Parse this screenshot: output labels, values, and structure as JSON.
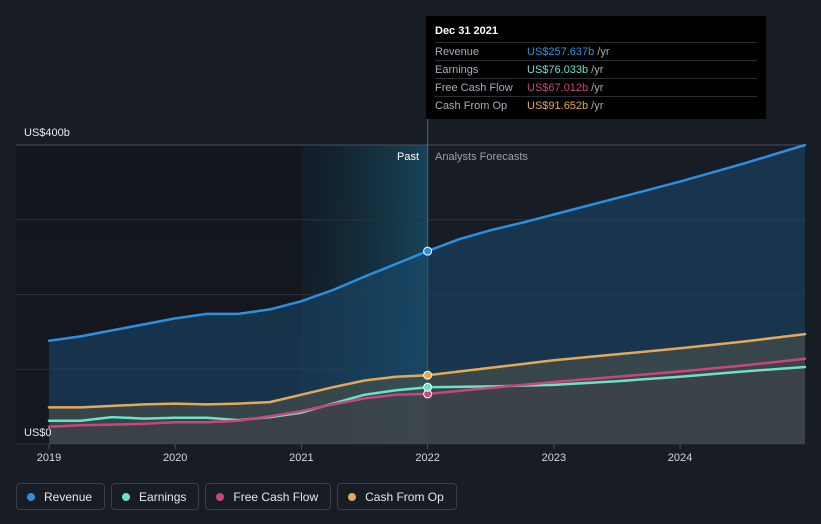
{
  "chart_data": {
    "type": "area",
    "title": "",
    "y_axis": {
      "top_label": "US$400b",
      "bottom_label": "US$0",
      "ylim": [
        0,
        400
      ]
    },
    "x_axis": {
      "ticks": [
        "2019",
        "2020",
        "2021",
        "2022",
        "2023",
        "2024"
      ],
      "xlim": [
        2019,
        2024.99
      ]
    },
    "past_label": "Past",
    "forecast_label": "Analysts Forecasts",
    "split_x": 2022.0,
    "highlight_start_x": 2021.0,
    "series": [
      {
        "name": "Revenue",
        "color": "#2d8fe0",
        "points": [
          [
            2019,
            138
          ],
          [
            2019.25,
            144
          ],
          [
            2019.5,
            152
          ],
          [
            2019.75,
            160
          ],
          [
            2020,
            168
          ],
          [
            2020.25,
            174
          ],
          [
            2020.5,
            174
          ],
          [
            2020.75,
            180
          ],
          [
            2021,
            191
          ],
          [
            2021.25,
            206
          ],
          [
            2021.5,
            224
          ],
          [
            2021.75,
            241
          ],
          [
            2022,
            258
          ],
          [
            2022.25,
            274
          ],
          [
            2022.5,
            286
          ],
          [
            2022.75,
            296
          ],
          [
            2023,
            307
          ],
          [
            2023.5,
            329
          ],
          [
            2024,
            351
          ],
          [
            2024.5,
            375
          ],
          [
            2024.99,
            400
          ]
        ]
      },
      {
        "name": "Cash From Op",
        "color": "#e4a85b",
        "points": [
          [
            2019,
            49
          ],
          [
            2019.25,
            49
          ],
          [
            2019.5,
            51
          ],
          [
            2019.75,
            53
          ],
          [
            2020,
            54
          ],
          [
            2020.25,
            53
          ],
          [
            2020.5,
            54
          ],
          [
            2020.75,
            56
          ],
          [
            2021,
            66
          ],
          [
            2021.25,
            76
          ],
          [
            2021.5,
            85
          ],
          [
            2021.75,
            90
          ],
          [
            2022,
            92
          ],
          [
            2022.5,
            102
          ],
          [
            2023,
            112
          ],
          [
            2023.5,
            120
          ],
          [
            2024,
            128
          ],
          [
            2024.5,
            137
          ],
          [
            2024.99,
            147
          ]
        ]
      },
      {
        "name": "Free Cash Flow",
        "color": "#c9467c",
        "points": [
          [
            2019,
            23
          ],
          [
            2019.25,
            25
          ],
          [
            2019.5,
            26
          ],
          [
            2019.75,
            27
          ],
          [
            2020,
            29
          ],
          [
            2020.25,
            29
          ],
          [
            2020.5,
            31
          ],
          [
            2020.75,
            37
          ],
          [
            2021,
            44
          ],
          [
            2021.25,
            53
          ],
          [
            2021.5,
            61
          ],
          [
            2021.75,
            66
          ],
          [
            2022,
            67
          ],
          [
            2022.5,
            75
          ],
          [
            2023,
            83
          ],
          [
            2023.5,
            90
          ],
          [
            2024,
            97
          ],
          [
            2024.5,
            105
          ],
          [
            2024.99,
            114
          ]
        ]
      },
      {
        "name": "Earnings",
        "color": "#6ee0c6",
        "points": [
          [
            2019,
            31
          ],
          [
            2019.25,
            31
          ],
          [
            2019.5,
            36
          ],
          [
            2019.75,
            34
          ],
          [
            2020,
            35
          ],
          [
            2020.25,
            35
          ],
          [
            2020.5,
            32
          ],
          [
            2020.75,
            36
          ],
          [
            2021,
            42
          ],
          [
            2021.25,
            54
          ],
          [
            2021.5,
            66
          ],
          [
            2021.75,
            72
          ],
          [
            2022,
            76
          ],
          [
            2022.5,
            77
          ],
          [
            2023,
            79
          ],
          [
            2023.5,
            84
          ],
          [
            2024,
            90
          ],
          [
            2024.5,
            97
          ],
          [
            2024.99,
            103
          ]
        ]
      }
    ]
  },
  "tooltip": {
    "date": "Dec 31 2021",
    "rows": [
      {
        "name": "Revenue",
        "value": "US$257.637b",
        "unit": "/yr",
        "color": "#2d8fe0"
      },
      {
        "name": "Earnings",
        "value": "US$76.033b",
        "unit": "/yr",
        "color": "#6ee0c6"
      },
      {
        "name": "Free Cash Flow",
        "value": "US$67.012b",
        "unit": "/yr",
        "color": "#c9467c"
      },
      {
        "name": "Cash From Op",
        "value": "US$91.652b",
        "unit": "/yr",
        "color": "#e4a85b"
      }
    ]
  },
  "legend": [
    {
      "label": "Revenue",
      "color": "#2d8fe0"
    },
    {
      "label": "Earnings",
      "color": "#6ee0c6"
    },
    {
      "label": "Free Cash Flow",
      "color": "#c9467c"
    },
    {
      "label": "Cash From Op",
      "color": "#e4a85b"
    }
  ]
}
